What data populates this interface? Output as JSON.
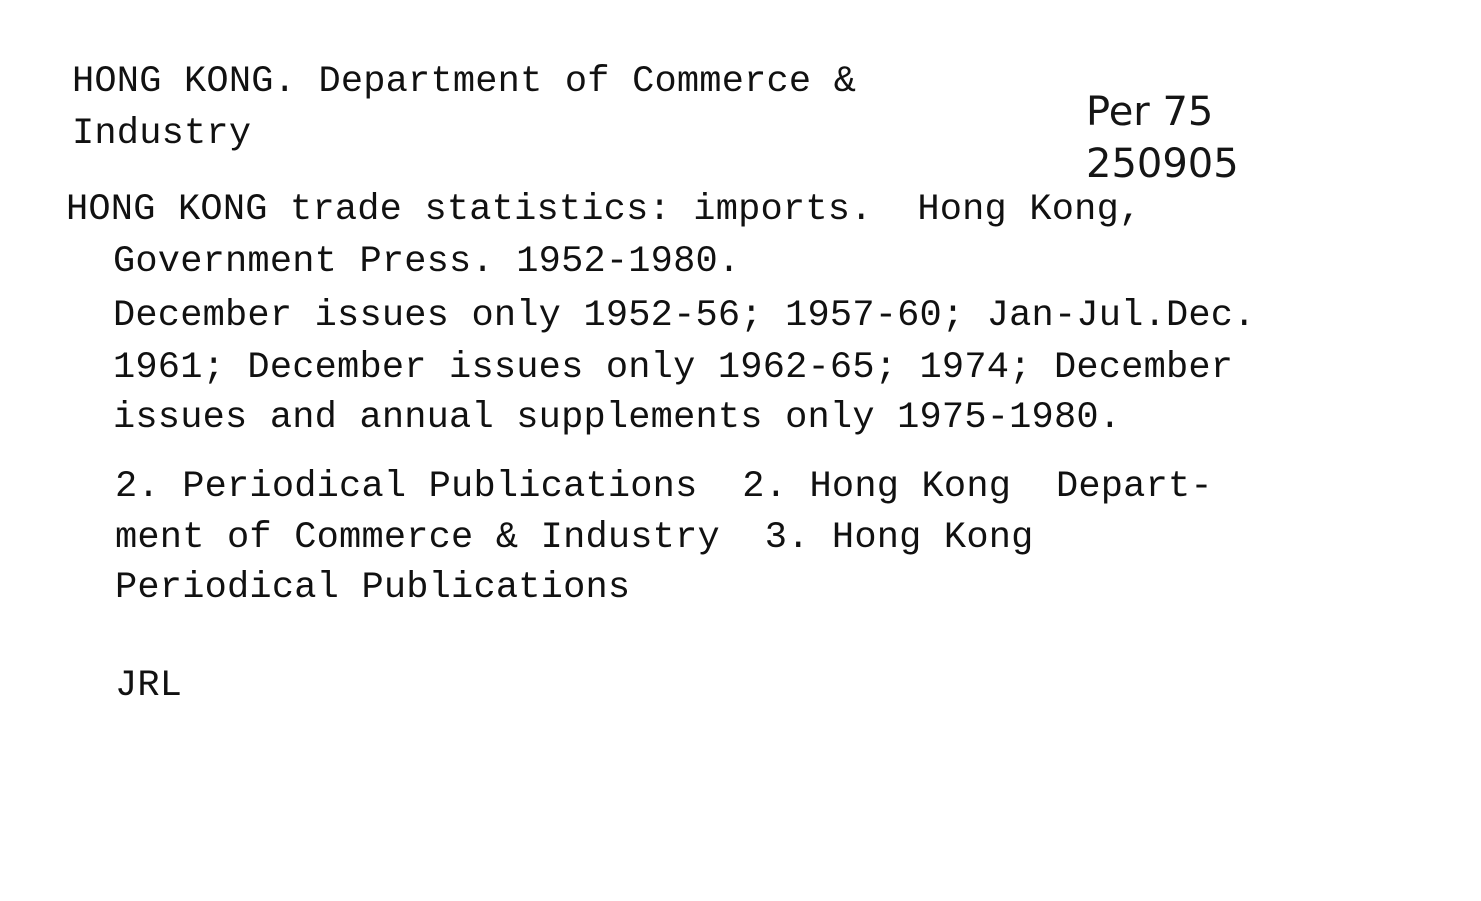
{
  "heading": {
    "line1": "HONG KONG. Department of Commerce &",
    "line2": "Industry"
  },
  "call_number": {
    "line1": "Per 75",
    "line2": "250905"
  },
  "title": {
    "line1": "HONG KONG trade statistics: imports.  Hong Kong,",
    "line2": "Government Press. 1952-1980."
  },
  "holdings": {
    "line1": "December issues only 1952-56; 1957-60; Jan-Jul.Dec.",
    "line2": "1961; December issues only 1962-65; 1974; December",
    "line3": "issues and annual supplements only 1975-1980."
  },
  "tracings": {
    "line1": "2. Periodical Publications  2. Hong Kong  Depart-",
    "line2": "ment of Commerce & Industry  3. Hong Kong",
    "line3": "Periodical Publications"
  },
  "library_code": "JRL"
}
